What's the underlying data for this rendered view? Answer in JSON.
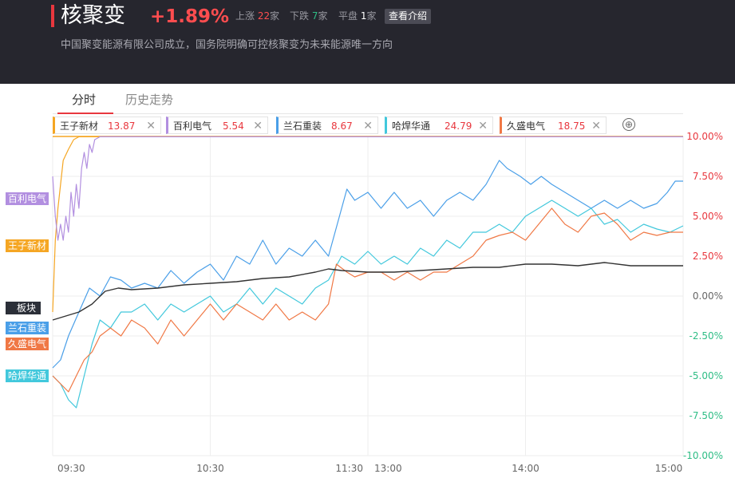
{
  "header": {
    "title": "核聚变",
    "change": "+1.89%",
    "up_label": "上涨",
    "up_count": "22",
    "up_unit": "家",
    "down_label": "下跌",
    "down_count": "7",
    "down_unit": "家",
    "flat_label": "平盘",
    "flat_count": "1",
    "flat_unit": "家",
    "intro_button": "查看介绍",
    "description": "中国聚变能源有限公司成立，国务院明确可控核聚变为未来能源唯一方向"
  },
  "tabs": [
    {
      "label": "分时"
    },
    {
      "label": "历史走势"
    }
  ],
  "chips": [
    {
      "name": "王子新材",
      "price": "13.87",
      "color": "#f5a623"
    },
    {
      "name": "百利电气",
      "price": "5.54",
      "color": "#b28fe0"
    },
    {
      "name": "兰石重装",
      "price": "8.67",
      "color": "#4a9fe8"
    },
    {
      "name": "哈焊华通",
      "price": "24.79",
      "color": "#42c8dc"
    },
    {
      "name": "久盛电气",
      "price": "18.75",
      "color": "#f07845"
    }
  ],
  "add_icon": "⊕",
  "close_icon": "✕",
  "side_labels": {
    "baili": "百利电气",
    "wangzi": "王子新材",
    "bankuai": "板块",
    "lanshi": "兰石重装",
    "jiusheng": "久盛电气",
    "hahan": "哈焊华通"
  },
  "colors": {
    "up": "#e8373e",
    "down": "#2ebd85",
    "sector": "#333333",
    "wangzi": "#f5a623",
    "baili": "#b28fe0",
    "lanshi": "#4a9fe8",
    "hahan": "#42c8dc",
    "jiusheng": "#f07845"
  },
  "chart_data": {
    "type": "line",
    "x_ticks": [
      "09:30",
      "10:30",
      "11:30",
      "13:00",
      "14:00",
      "15:00"
    ],
    "y_ticks": [
      "10.00%",
      "7.50%",
      "5.00%",
      "2.50%",
      "0.00%",
      "-2.50%",
      "-5.00%",
      "-7.50%",
      "-10.00%"
    ],
    "y_tick_values": [
      10,
      7.5,
      5,
      2.5,
      0,
      -2.5,
      -5,
      -7.5,
      -10
    ],
    "ylim": [
      -10,
      10
    ],
    "x_unit": "trading minutes from 09:30 (0-240)",
    "xlim": [
      0,
      240
    ],
    "series": [
      {
        "name": "王子新材",
        "color": "#f5a623",
        "values": [
          [
            0,
            -1.0
          ],
          [
            1,
            3.5
          ],
          [
            2,
            5.5
          ],
          [
            3,
            7.0
          ],
          [
            4,
            8.5
          ],
          [
            6,
            9.2
          ],
          [
            8,
            9.8
          ],
          [
            10,
            9.98
          ],
          [
            240,
            9.98
          ]
        ]
      },
      {
        "name": "百利电气",
        "color": "#b28fe0",
        "values": [
          [
            0,
            7.5
          ],
          [
            1,
            5.0
          ],
          [
            2,
            3.5
          ],
          [
            3,
            4.5
          ],
          [
            4,
            3.5
          ],
          [
            5,
            5.0
          ],
          [
            6,
            4.0
          ],
          [
            7,
            6.5
          ],
          [
            8,
            5.0
          ],
          [
            9,
            7.0
          ],
          [
            10,
            5.5
          ],
          [
            11,
            8.0
          ],
          [
            12,
            9.0
          ],
          [
            13,
            8.0
          ],
          [
            14,
            9.5
          ],
          [
            15,
            9.0
          ],
          [
            16,
            9.8
          ],
          [
            18,
            9.98
          ],
          [
            240,
            9.98
          ]
        ]
      },
      {
        "name": "兰石重装",
        "color": "#4a9fe8",
        "values": [
          [
            0,
            -4.5
          ],
          [
            3,
            -4.0
          ],
          [
            6,
            -2.5
          ],
          [
            10,
            -1.0
          ],
          [
            14,
            0.5
          ],
          [
            18,
            0.0
          ],
          [
            22,
            1.2
          ],
          [
            26,
            1.0
          ],
          [
            30,
            0.5
          ],
          [
            35,
            0.8
          ],
          [
            40,
            0.5
          ],
          [
            45,
            1.6
          ],
          [
            50,
            0.8
          ],
          [
            55,
            1.5
          ],
          [
            60,
            2.0
          ],
          [
            65,
            1.0
          ],
          [
            70,
            2.5
          ],
          [
            75,
            2.0
          ],
          [
            80,
            3.5
          ],
          [
            85,
            2.0
          ],
          [
            90,
            3.0
          ],
          [
            95,
            2.5
          ],
          [
            100,
            3.5
          ],
          [
            105,
            2.5
          ],
          [
            110,
            5.5
          ],
          [
            112,
            6.7
          ],
          [
            115,
            6.0
          ],
          [
            120,
            6.5
          ],
          [
            125,
            5.5
          ],
          [
            130,
            6.5
          ],
          [
            135,
            5.5
          ],
          [
            140,
            6.0
          ],
          [
            145,
            5.0
          ],
          [
            150,
            6.0
          ],
          [
            155,
            6.5
          ],
          [
            160,
            6.0
          ],
          [
            165,
            7.0
          ],
          [
            170,
            8.5
          ],
          [
            173,
            8.0
          ],
          [
            178,
            7.5
          ],
          [
            182,
            7.0
          ],
          [
            186,
            7.5
          ],
          [
            190,
            7.0
          ],
          [
            195,
            6.5
          ],
          [
            200,
            6.0
          ],
          [
            205,
            5.5
          ],
          [
            210,
            6.0
          ],
          [
            215,
            5.5
          ],
          [
            220,
            6.0
          ],
          [
            225,
            5.5
          ],
          [
            230,
            5.8
          ],
          [
            234,
            6.5
          ],
          [
            237,
            7.2
          ],
          [
            240,
            7.2
          ]
        ]
      },
      {
        "name": "哈焊华通",
        "color": "#42c8dc",
        "values": [
          [
            0,
            -5.0
          ],
          [
            3,
            -5.5
          ],
          [
            6,
            -6.5
          ],
          [
            9,
            -7.0
          ],
          [
            12,
            -5.0
          ],
          [
            15,
            -3.0
          ],
          [
            18,
            -1.5
          ],
          [
            22,
            -2.0
          ],
          [
            26,
            -1.0
          ],
          [
            30,
            -1.0
          ],
          [
            35,
            -0.5
          ],
          [
            40,
            -1.5
          ],
          [
            45,
            -0.5
          ],
          [
            50,
            -1.0
          ],
          [
            55,
            -0.5
          ],
          [
            60,
            0.0
          ],
          [
            65,
            -1.0
          ],
          [
            70,
            -0.5
          ],
          [
            75,
            0.5
          ],
          [
            80,
            -0.5
          ],
          [
            85,
            0.5
          ],
          [
            90,
            0.0
          ],
          [
            95,
            -0.5
          ],
          [
            100,
            0.5
          ],
          [
            105,
            1.0
          ],
          [
            110,
            2.5
          ],
          [
            115,
            2.0
          ],
          [
            120,
            2.8
          ],
          [
            125,
            2.0
          ],
          [
            130,
            2.5
          ],
          [
            135,
            2.0
          ],
          [
            140,
            3.0
          ],
          [
            145,
            2.5
          ],
          [
            150,
            3.5
          ],
          [
            155,
            3.0
          ],
          [
            160,
            4.0
          ],
          [
            165,
            4.0
          ],
          [
            170,
            4.5
          ],
          [
            175,
            4.0
          ],
          [
            180,
            5.0
          ],
          [
            185,
            5.5
          ],
          [
            190,
            6.0
          ],
          [
            195,
            5.5
          ],
          [
            200,
            5.0
          ],
          [
            205,
            5.5
          ],
          [
            210,
            4.5
          ],
          [
            215,
            4.8
          ],
          [
            220,
            4.0
          ],
          [
            225,
            4.5
          ],
          [
            230,
            4.2
          ],
          [
            235,
            4.0
          ],
          [
            240,
            4.4
          ]
        ]
      },
      {
        "name": "久盛电气",
        "color": "#f07845",
        "values": [
          [
            0,
            -5.0
          ],
          [
            3,
            -5.5
          ],
          [
            6,
            -6.0
          ],
          [
            9,
            -5.0
          ],
          [
            12,
            -4.0
          ],
          [
            15,
            -3.5
          ],
          [
            18,
            -2.5
          ],
          [
            22,
            -2.0
          ],
          [
            26,
            -2.5
          ],
          [
            30,
            -1.5
          ],
          [
            35,
            -2.0
          ],
          [
            40,
            -3.0
          ],
          [
            45,
            -1.5
          ],
          [
            50,
            -2.5
          ],
          [
            55,
            -1.5
          ],
          [
            60,
            -0.5
          ],
          [
            65,
            -1.5
          ],
          [
            70,
            -0.5
          ],
          [
            75,
            -1.0
          ],
          [
            80,
            -1.5
          ],
          [
            85,
            -0.5
          ],
          [
            90,
            -1.5
          ],
          [
            95,
            -1.0
          ],
          [
            100,
            -1.5
          ],
          [
            105,
            -0.5
          ],
          [
            108,
            2.0
          ],
          [
            112,
            1.5
          ],
          [
            115,
            1.2
          ],
          [
            120,
            1.5
          ],
          [
            125,
            1.5
          ],
          [
            130,
            1.0
          ],
          [
            135,
            1.5
          ],
          [
            140,
            1.0
          ],
          [
            145,
            1.5
          ],
          [
            150,
            1.5
          ],
          [
            155,
            2.0
          ],
          [
            160,
            2.5
          ],
          [
            165,
            3.5
          ],
          [
            170,
            3.8
          ],
          [
            175,
            4.0
          ],
          [
            180,
            3.5
          ],
          [
            185,
            4.5
          ],
          [
            190,
            5.5
          ],
          [
            195,
            4.5
          ],
          [
            200,
            4.0
          ],
          [
            205,
            5.0
          ],
          [
            210,
            5.2
          ],
          [
            215,
            4.5
          ],
          [
            220,
            3.5
          ],
          [
            225,
            4.0
          ],
          [
            230,
            3.8
          ],
          [
            235,
            4.0
          ],
          [
            240,
            4.0
          ]
        ]
      },
      {
        "name": "板块",
        "color": "#333333",
        "values": [
          [
            0,
            -1.5
          ],
          [
            10,
            -1.0
          ],
          [
            15,
            -0.5
          ],
          [
            20,
            0.3
          ],
          [
            25,
            0.5
          ],
          [
            30,
            0.4
          ],
          [
            40,
            0.5
          ],
          [
            50,
            0.7
          ],
          [
            60,
            0.8
          ],
          [
            70,
            0.9
          ],
          [
            80,
            1.1
          ],
          [
            90,
            1.2
          ],
          [
            100,
            1.5
          ],
          [
            105,
            1.7
          ],
          [
            110,
            1.6
          ],
          [
            120,
            1.5
          ],
          [
            130,
            1.5
          ],
          [
            140,
            1.6
          ],
          [
            150,
            1.7
          ],
          [
            160,
            1.8
          ],
          [
            170,
            1.8
          ],
          [
            180,
            2.0
          ],
          [
            190,
            2.0
          ],
          [
            200,
            1.9
          ],
          [
            210,
            2.1
          ],
          [
            220,
            1.9
          ],
          [
            230,
            1.9
          ],
          [
            240,
            1.9
          ]
        ]
      }
    ]
  }
}
